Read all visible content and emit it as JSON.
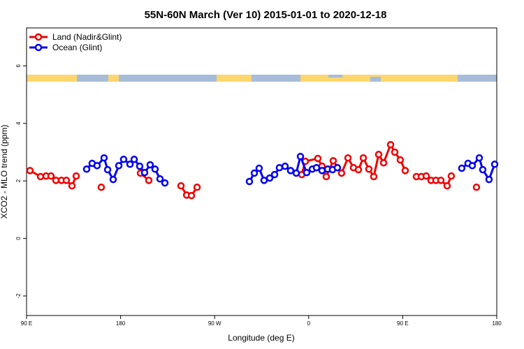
{
  "chart_data": {
    "type": "line",
    "title": "55N-60N March (Ver 10)   2015-01-01 to 2020-12-18",
    "xlabel": "Longitude (deg E)",
    "ylabel": "XCO2 - MLO trend (ppm)",
    "xlim": [
      90,
      540
    ],
    "ylim": [
      -2.68,
      7.32
    ],
    "xticks": [
      {
        "value": 90,
        "label": "90 E"
      },
      180,
      {
        "value": 270,
        "label": "90 W"
      },
      {
        "value": 360,
        "label": "0"
      },
      {
        "value": 450,
        "label": "90 E"
      },
      {
        "value": 540,
        "label": "180"
      }
    ],
    "yticks": [
      -2,
      0,
      2,
      4,
      6
    ],
    "legend": "top-left",
    "series": [
      {
        "name": "Land (Nadir&Glint)",
        "color": "#ee0000",
        "x": [
          93.3,
          103.4,
          108.7,
          113.4,
          118.1,
          123.4,
          128.1,
          133.5,
          137.5,
          null,
          161.5,
          null,
          199,
          207,
          null,
          237.8,
          243.2,
          247.8,
          253.2,
          null,
          353.4,
          356.8,
          368.8,
          372.8,
          376.8,
          383.5,
          391.5,
          397.6,
          402.9,
          407.6,
          412.3,
          417.6,
          422.3,
          427,
          431.7,
          438.4,
          442.4,
          447.7,
          452.4,
          null,
          463.1,
          467.8,
          472.5,
          477.1,
          481.8,
          486.5,
          492.5,
          496.5,
          null,
          520.6
        ],
        "values": [
          2.36,
          2.15,
          2.17,
          2.17,
          2.02,
          2.02,
          2.02,
          1.83,
          2.17,
          null,
          1.78,
          null,
          2.27,
          2.02,
          null,
          1.83,
          1.51,
          1.49,
          1.78,
          null,
          2.22,
          2.68,
          2.78,
          2.51,
          2.15,
          2.7,
          2.27,
          2.8,
          2.46,
          2.39,
          2.8,
          2.41,
          2.15,
          2.92,
          2.63,
          3.26,
          3.0,
          2.73,
          2.36,
          null,
          2.15,
          2.15,
          2.17,
          2.02,
          2.02,
          2.02,
          1.83,
          2.17,
          null,
          1.78
        ]
      },
      {
        "name": "Ocean (Glint)",
        "color": "#0000ee",
        "x": [
          147.5,
          152.8,
          157.5,
          164.2,
          167.6,
          172.9,
          178.3,
          182.9,
          189,
          193,
          198.3,
          203,
          208.3,
          213,
          217.7,
          222.4,
          null,
          303.3,
          308,
          312.6,
          317.3,
          322.7,
          327.4,
          332,
          337.4,
          342.7,
          348.1,
          352.1,
          358.1,
          363.5,
          367.5,
          372.8,
          378.2,
          382.8,
          387.5,
          null,
          506.5,
          512.5,
          516.6,
          523.3,
          526.6,
          532.6,
          538
        ],
        "values": [
          2.41,
          2.61,
          2.53,
          2.8,
          2.39,
          2.05,
          2.53,
          2.75,
          2.58,
          2.75,
          2.51,
          2.29,
          2.56,
          2.41,
          2.07,
          1.93,
          null,
          1.98,
          2.27,
          2.44,
          2.02,
          2.1,
          2.22,
          2.46,
          2.51,
          2.36,
          2.27,
          2.85,
          2.29,
          2.41,
          2.46,
          2.36,
          2.41,
          2.39,
          2.46,
          null,
          2.44,
          2.61,
          2.53,
          2.8,
          2.39,
          2.05,
          2.58
        ]
      }
    ]
  }
}
